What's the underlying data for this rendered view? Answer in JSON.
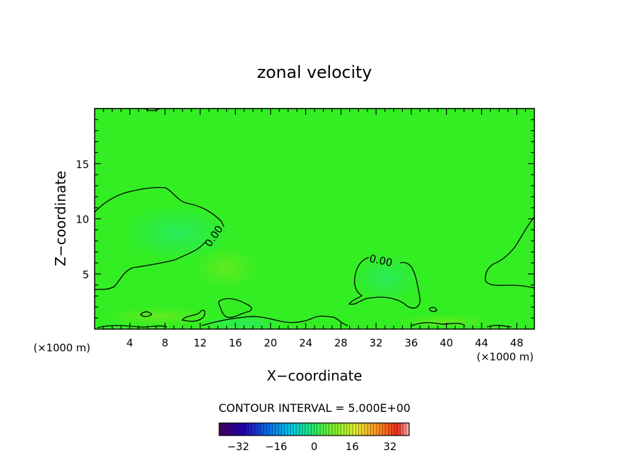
{
  "chart_data": {
    "type": "contour",
    "title": "zonal velocity",
    "xlabel": "X−coordinate",
    "ylabel": "Z−coordinate",
    "x_unit_left": "(×1000 m)",
    "x_unit_right": "(×1000 m)",
    "xlim": [
      0,
      50
    ],
    "ylim": [
      0,
      20
    ],
    "x_ticks": [
      4,
      8,
      12,
      16,
      20,
      24,
      28,
      32,
      36,
      40,
      44,
      48
    ],
    "y_ticks": [
      5,
      10,
      15
    ],
    "field_color": "#33ee22",
    "contour_label": "0.00",
    "contour_interval_label": "CONTOUR INTERVAL = 5.000E+00",
    "colorbar": {
      "min": -40,
      "max": 40,
      "tick_labels": [
        "−32",
        "−16",
        "0",
        "16",
        "32"
      ],
      "tick_values": [
        -32,
        -16,
        0,
        16,
        32
      ]
    }
  }
}
